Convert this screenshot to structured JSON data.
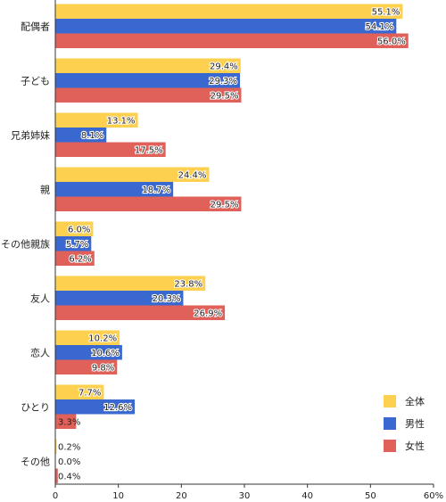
{
  "chart_data": {
    "type": "bar",
    "orientation": "horizontal",
    "categories": [
      "配偶者",
      "子ども",
      "兄弟姉妹",
      "親",
      "その他親族",
      "友人",
      "恋人",
      "ひとり",
      "その他"
    ],
    "series": [
      {
        "name": "全体",
        "color": "#fdd04f",
        "values": [
          55.1,
          29.4,
          13.1,
          24.4,
          6.0,
          23.8,
          10.2,
          7.7,
          0.2
        ],
        "labels": [
          "55.1%",
          "29.4%",
          "13.1%",
          "24.4%",
          "6.0%",
          "23.8%",
          "10.2%",
          "7.7%",
          "0.2%"
        ]
      },
      {
        "name": "男性",
        "color": "#3968d0",
        "values": [
          54.1,
          29.3,
          8.1,
          18.7,
          5.7,
          20.3,
          10.6,
          12.6,
          0.0
        ],
        "labels": [
          "54.1%",
          "29.3%",
          "8.1%",
          "18.7%",
          "5.7%",
          "20.3%",
          "10.6%",
          "12.6%",
          "0.0%"
        ]
      },
      {
        "name": "女性",
        "color": "#e0605a",
        "values": [
          56.0,
          29.5,
          17.5,
          29.5,
          6.2,
          26.9,
          9.8,
          3.3,
          0.4
        ],
        "labels": [
          "56.0%",
          "29.5%",
          "17.5%",
          "29.5%",
          "6.2%",
          "26.9%",
          "9.8%",
          "3.3%",
          "0.4%"
        ]
      }
    ],
    "xlim": [
      0,
      60
    ],
    "xticks": [
      "0",
      "10",
      "20",
      "30",
      "40",
      "50",
      "60%"
    ],
    "legend": "bottom-right",
    "grid": false
  }
}
